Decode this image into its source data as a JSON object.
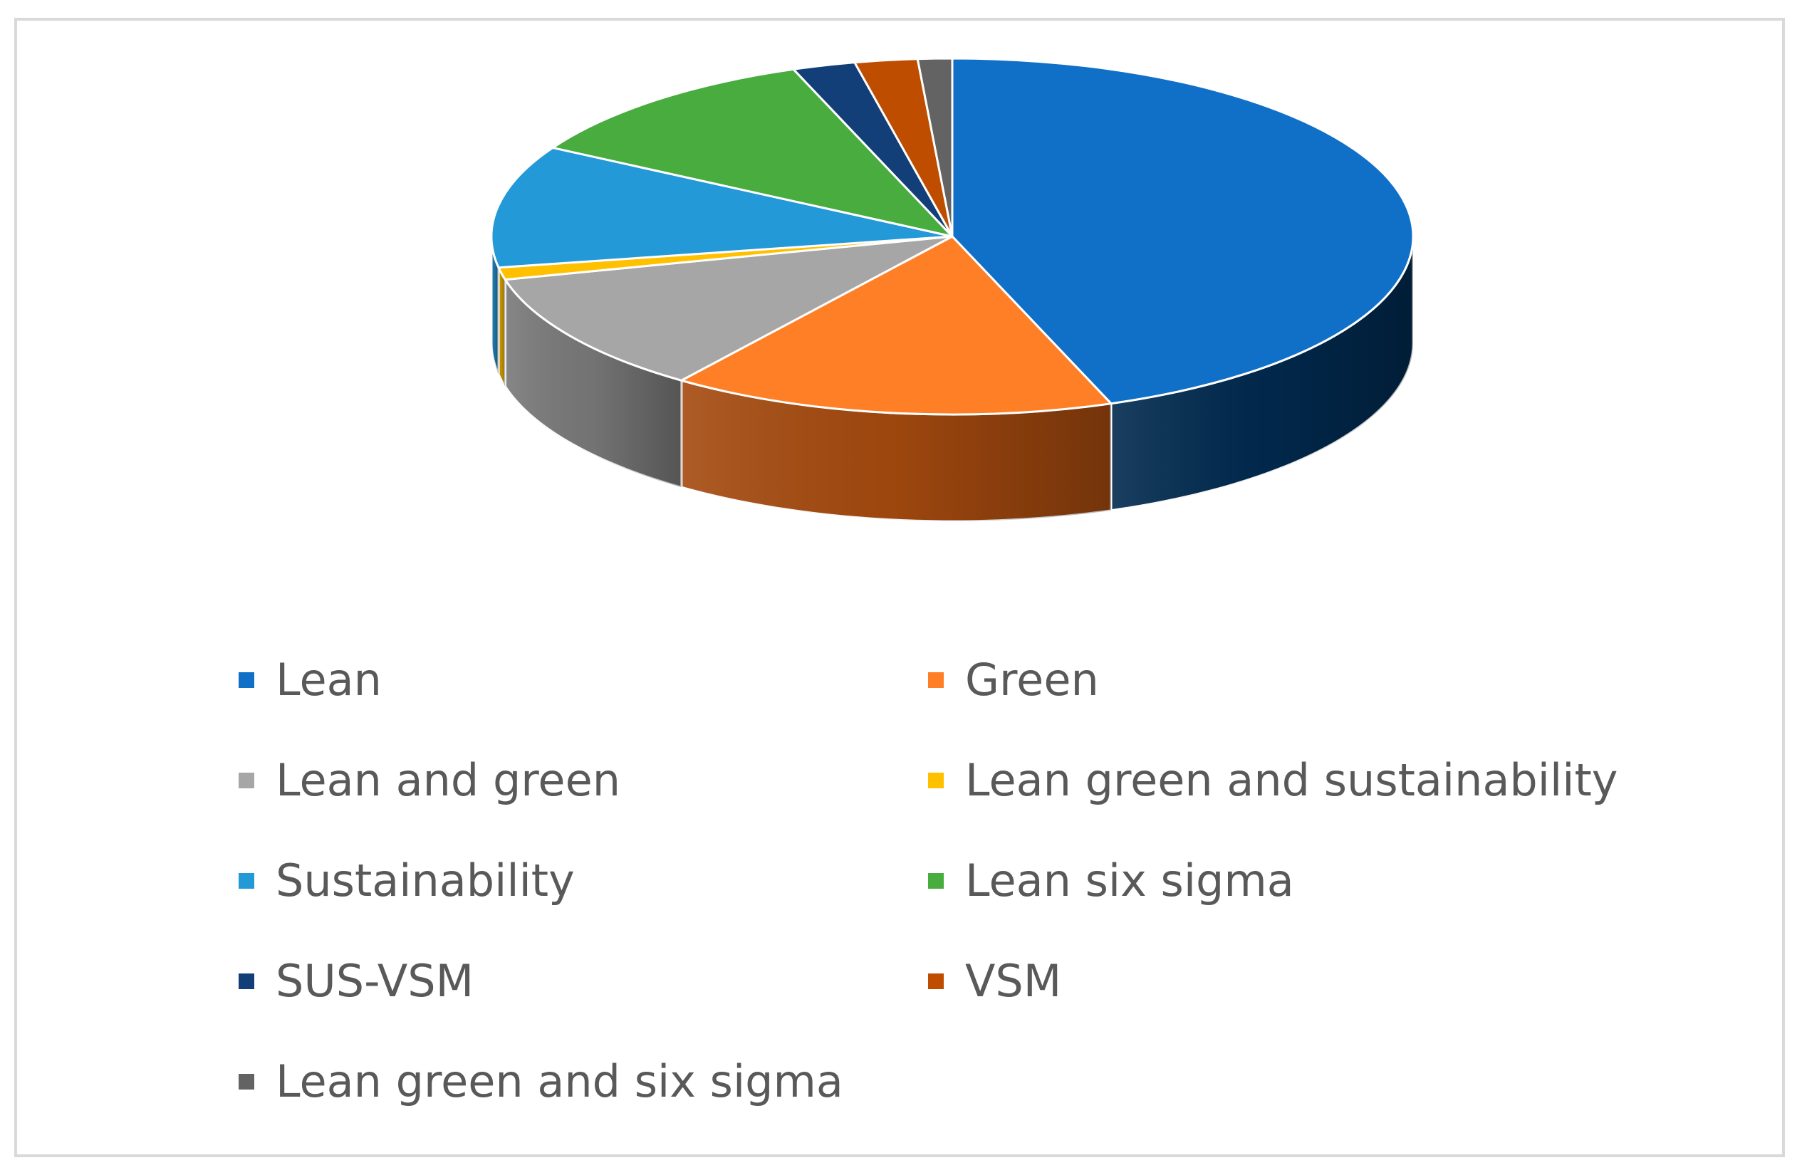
{
  "chart_data": {
    "type": "pie",
    "style": "3d",
    "title": "",
    "legend_position": "bottom",
    "categories": [
      "Lean",
      "Green",
      "Lean and green",
      "Lean green and sustainability",
      "Sustainability",
      "Lean six sigma",
      "SUS-VSM",
      "VSM",
      "Lean green and six sigma"
    ],
    "values": [
      44.4,
      15.6,
      11.1,
      1.1,
      11.1,
      11.1,
      2.2,
      2.2,
      1.2
    ],
    "colors": [
      "#1070C8",
      "#FF7F27",
      "#A6A6A6",
      "#FFC000",
      "#2399D8",
      "#48AC3E",
      "#123F78",
      "#BF4D00",
      "#636363"
    ],
    "side_colors": [
      "#012A4F",
      "#A54A0F",
      "#797979",
      "#C49300",
      "#1A75A8",
      "#347F2D",
      "#0A2748",
      "#8A3700",
      "#444444"
    ]
  }
}
